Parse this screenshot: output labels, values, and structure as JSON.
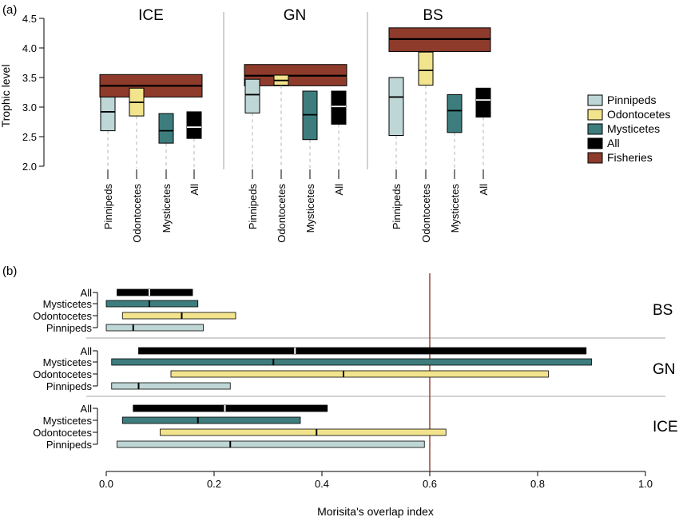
{
  "colors": {
    "Pinnipeds": "#bfd6d6",
    "Odontocetes": "#f2e48c",
    "Mysticetes": "#3e7d7d",
    "All": "#000000",
    "Fisheries": "#8e3b2c",
    "threshold_line": "#8e3b2c",
    "separator": "#b8b8b8"
  },
  "chart_data": [
    {
      "panel_label": "(a)",
      "type": "box",
      "ylabel": "Trophic level",
      "ylim": [
        2.0,
        4.5
      ],
      "yticks": [
        "2.0",
        "2.5",
        "3.0",
        "3.5",
        "4.0",
        "4.5"
      ],
      "categories": [
        "Pinnipeds",
        "Odontocetes",
        "Mysticetes",
        "All"
      ],
      "groups": [
        {
          "name": "ICE",
          "fisheries": {
            "low": 3.17,
            "median": 3.36,
            "high": 3.55
          },
          "boxes": [
            {
              "category": "Pinnipeds",
              "low": 2.6,
              "median": 2.92,
              "high": 3.17
            },
            {
              "category": "Odontocetes",
              "low": 2.85,
              "median": 3.08,
              "high": 3.32
            },
            {
              "category": "Mysticetes",
              "low": 2.39,
              "median": 2.6,
              "high": 2.89
            },
            {
              "category": "All",
              "low": 2.47,
              "median": 2.66,
              "high": 2.92
            }
          ]
        },
        {
          "name": "GN",
          "fisheries": {
            "low": 3.36,
            "median": 3.53,
            "high": 3.72
          },
          "boxes": [
            {
              "category": "Pinnipeds",
              "low": 2.9,
              "median": 3.21,
              "high": 3.47
            },
            {
              "category": "Odontocetes",
              "low": 3.37,
              "median": 3.45,
              "high": 3.54
            },
            {
              "category": "Mysticetes",
              "low": 2.45,
              "median": 2.87,
              "high": 3.27
            },
            {
              "category": "All",
              "low": 2.71,
              "median": 3.01,
              "high": 3.27
            }
          ]
        },
        {
          "name": "BS",
          "fisheries": {
            "low": 3.94,
            "median": 4.15,
            "high": 4.34
          },
          "boxes": [
            {
              "category": "Pinnipeds",
              "low": 2.52,
              "median": 3.17,
              "high": 3.5
            },
            {
              "category": "Odontocetes",
              "low": 3.37,
              "median": 3.62,
              "high": 3.93
            },
            {
              "category": "Mysticetes",
              "low": 2.57,
              "median": 2.94,
              "high": 3.21
            },
            {
              "category": "All",
              "low": 2.83,
              "median": 3.12,
              "high": 3.32
            }
          ]
        }
      ],
      "legend": [
        "Pinnipeds",
        "Odontocetes",
        "Mysticetes",
        "All",
        "Fisheries"
      ]
    },
    {
      "panel_label": "(b)",
      "type": "interval",
      "xlabel": "Morisita's overlap index",
      "xlim": [
        0.0,
        1.0
      ],
      "xticks": [
        "0.0",
        "0.2",
        "0.4",
        "0.6",
        "0.8",
        "1.0"
      ],
      "threshold": 0.6,
      "categories": [
        "All",
        "Mysticetes",
        "Odontocetes",
        "Pinnipeds"
      ],
      "groups": [
        {
          "name": "BS",
          "bars": [
            {
              "category": "All",
              "low": 0.02,
              "median": 0.08,
              "high": 0.16
            },
            {
              "category": "Mysticetes",
              "low": 0.0,
              "median": 0.08,
              "high": 0.17
            },
            {
              "category": "Odontocetes",
              "low": 0.03,
              "median": 0.14,
              "high": 0.24
            },
            {
              "category": "Pinnipeds",
              "low": 0.0,
              "median": 0.05,
              "high": 0.18
            }
          ]
        },
        {
          "name": "GN",
          "bars": [
            {
              "category": "All",
              "low": 0.06,
              "median": 0.35,
              "high": 0.89
            },
            {
              "category": "Mysticetes",
              "low": 0.01,
              "median": 0.31,
              "high": 0.9
            },
            {
              "category": "Odontocetes",
              "low": 0.12,
              "median": 0.44,
              "high": 0.82
            },
            {
              "category": "Pinnipeds",
              "low": 0.01,
              "median": 0.06,
              "high": 0.23
            }
          ]
        },
        {
          "name": "ICE",
          "bars": [
            {
              "category": "All",
              "low": 0.05,
              "median": 0.22,
              "high": 0.41
            },
            {
              "category": "Mysticetes",
              "low": 0.03,
              "median": 0.17,
              "high": 0.36
            },
            {
              "category": "Odontocetes",
              "low": 0.1,
              "median": 0.39,
              "high": 0.63
            },
            {
              "category": "Pinnipeds",
              "low": 0.02,
              "median": 0.23,
              "high": 0.59
            }
          ]
        }
      ]
    }
  ]
}
